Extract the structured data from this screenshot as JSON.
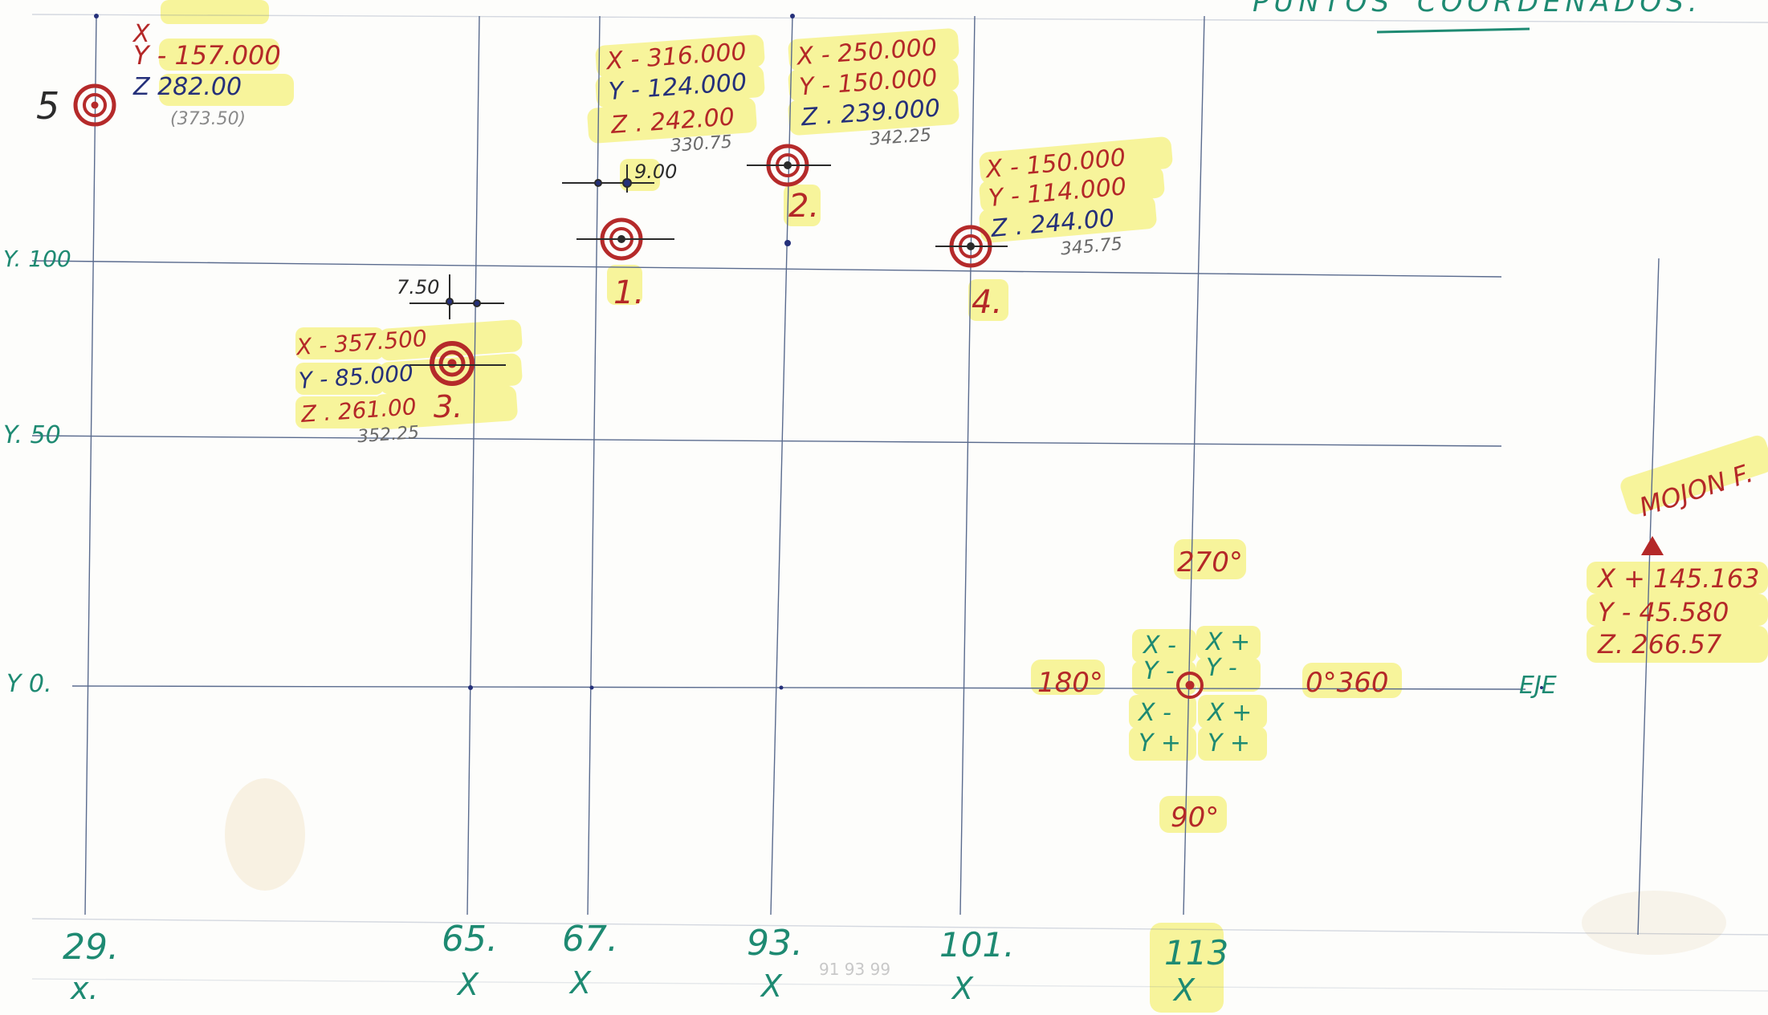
{
  "header": {
    "title_left": "PUNTOS",
    "title_right": "COORDENADOS."
  },
  "axis_labels": {
    "y_100": "Y. 100",
    "y_50": "Y. 50",
    "y_0": "Y 0.",
    "x_29": "29.",
    "x_29_sub": "x.",
    "x_65": "65.",
    "x_65_sub": "X",
    "x_67": "67.",
    "x_67_sub": "X",
    "x_93": "93.",
    "x_93_sub": "X",
    "x_101": "101.",
    "x_101_sub": "X",
    "x_113": "113",
    "x_113_sub": "X",
    "eje": "EJE",
    "faint_ticks": "91  93  99"
  },
  "points": [
    {
      "number": "5",
      "x": "X",
      "y": "Y - 157.000",
      "z": "Z  282.00",
      "note": "(373.50)"
    },
    {
      "number": "1.",
      "x": "X - 316.000",
      "y": "Y - 124.000",
      "z": "Z . 242.00",
      "note": "330.75",
      "offset": "9.00"
    },
    {
      "number": "2.",
      "x": "X - 250.000",
      "y": "Y - 150.000",
      "z": "Z . 239.000",
      "note": "342.25"
    },
    {
      "number": "4.",
      "x": "X - 150.000",
      "y": "Y - 114.000",
      "z": "Z . 244.00",
      "note": "345.75"
    },
    {
      "number": "3.",
      "x": "X - 357.500",
      "y": "Y - 85.000",
      "z": "Z . 261.00",
      "note": "352.25",
      "offset": "7.50"
    }
  ],
  "compass": {
    "deg_270": "270°",
    "deg_180": "180°",
    "deg_0_360": "0°360",
    "deg_90": "90°",
    "q_upper_left_x": "X -",
    "q_upper_left_y": "Y -",
    "q_upper_right_x": "X +",
    "q_upper_right_y": "Y -",
    "q_lower_left_x": "X -",
    "q_lower_left_y": "Y +",
    "q_lower_right_x": "X +",
    "q_lower_right_y": "Y +"
  },
  "mojon": {
    "label": "MOJON F.",
    "x": "X + 145.163",
    "y": "Y - 45.580",
    "z": "Z. 266.57"
  },
  "colors": {
    "highlight": "#f6f28a",
    "red_ink": "#b42828",
    "blue_ink": "#25307a",
    "green_ink": "#1e8a72",
    "grid": "#5a6b8e",
    "target": "#b52a2a"
  }
}
